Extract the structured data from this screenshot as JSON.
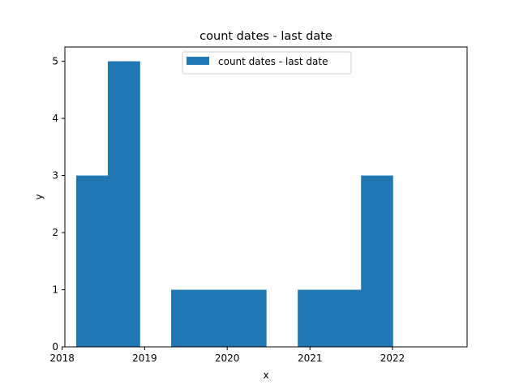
{
  "chart_data": {
    "type": "bar",
    "title": "count dates - last date",
    "xlabel": "x",
    "ylabel": "y",
    "x_axis_type": "date",
    "xlim": [
      "2018-01-13",
      "2022-11-27"
    ],
    "ylim": [
      0,
      5.25
    ],
    "x_ticks": [
      {
        "value": "2018-01-01",
        "label": "2018"
      },
      {
        "value": "2019-01-01",
        "label": "2019"
      },
      {
        "value": "2020-01-01",
        "label": "2020"
      },
      {
        "value": "2021-01-01",
        "label": "2021"
      },
      {
        "value": "2022-01-01",
        "label": "2022"
      }
    ],
    "y_ticks": [
      0,
      1,
      2,
      3,
      4,
      5
    ],
    "bins": [
      {
        "start": "2018-03-04",
        "end": "2018-07-22",
        "count": 3
      },
      {
        "start": "2018-07-22",
        "end": "2018-12-10",
        "count": 5
      },
      {
        "start": "2018-12-10",
        "end": "2019-04-28",
        "count": 0
      },
      {
        "start": "2019-04-28",
        "end": "2019-09-15",
        "count": 1
      },
      {
        "start": "2019-09-15",
        "end": "2020-02-02",
        "count": 1
      },
      {
        "start": "2020-02-02",
        "end": "2020-06-21",
        "count": 1
      },
      {
        "start": "2020-06-21",
        "end": "2020-11-08",
        "count": 0
      },
      {
        "start": "2020-11-08",
        "end": "2021-03-28",
        "count": 1
      },
      {
        "start": "2021-03-28",
        "end": "2021-08-15",
        "count": 1
      },
      {
        "start": "2021-08-15",
        "end": "2022-01-02",
        "count": 3
      }
    ],
    "series": [
      {
        "name": "count dates - last date",
        "color": "#1f77b4"
      }
    ],
    "legend": {
      "placement": "upper-center",
      "label": "count dates - last date"
    },
    "grid": false
  }
}
